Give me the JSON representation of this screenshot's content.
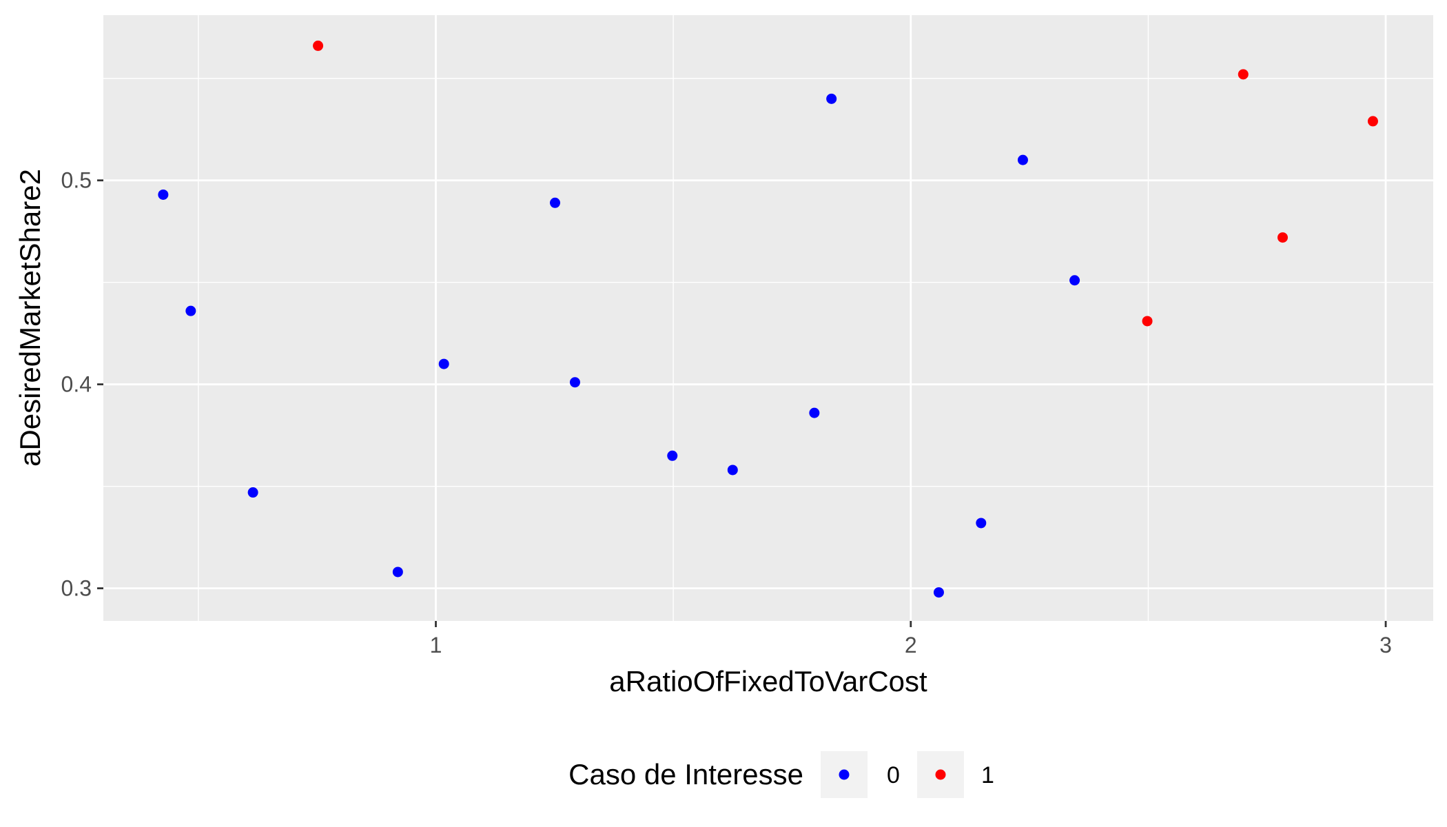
{
  "chart_data": {
    "type": "scatter",
    "xlabel": "aRatioOfFixedToVarCost",
    "ylabel": "aDesiredMarketShare2",
    "xlim": [
      0.3,
      3.1
    ],
    "ylim": [
      0.284,
      0.581
    ],
    "x_ticks": [
      1,
      2,
      3
    ],
    "x_tick_labels": [
      "1",
      "2",
      "3"
    ],
    "y_ticks": [
      0.3,
      0.4,
      0.5
    ],
    "y_tick_labels": [
      "0.3",
      "0.4",
      "0.5"
    ],
    "grid": true,
    "background": "#ebebeb",
    "grid_color": "#ffffff",
    "legend": {
      "title": "Caso de Interesse",
      "position": "bottom",
      "entries": [
        {
          "label": "0",
          "color": "#0000ff"
        },
        {
          "label": "1",
          "color": "#ff0000"
        }
      ]
    },
    "series": [
      {
        "group": "0",
        "color": "#0000ff",
        "points": [
          {
            "x": 0.426,
            "y": 0.493
          },
          {
            "x": 0.484,
            "y": 0.436
          },
          {
            "x": 0.615,
            "y": 0.347
          },
          {
            "x": 0.92,
            "y": 0.308
          },
          {
            "x": 1.017,
            "y": 0.41
          },
          {
            "x": 1.251,
            "y": 0.489
          },
          {
            "x": 1.293,
            "y": 0.401
          },
          {
            "x": 1.498,
            "y": 0.365
          },
          {
            "x": 1.625,
            "y": 0.358
          },
          {
            "x": 1.797,
            "y": 0.386
          },
          {
            "x": 1.833,
            "y": 0.54
          },
          {
            "x": 2.059,
            "y": 0.298
          },
          {
            "x": 2.148,
            "y": 0.332
          },
          {
            "x": 2.236,
            "y": 0.51
          },
          {
            "x": 2.345,
            "y": 0.451
          }
        ]
      },
      {
        "group": "1",
        "color": "#ff0000",
        "points": [
          {
            "x": 0.752,
            "y": 0.566
          },
          {
            "x": 2.498,
            "y": 0.431
          },
          {
            "x": 2.7,
            "y": 0.552
          },
          {
            "x": 2.783,
            "y": 0.472
          },
          {
            "x": 2.973,
            "y": 0.529
          }
        ]
      }
    ]
  }
}
